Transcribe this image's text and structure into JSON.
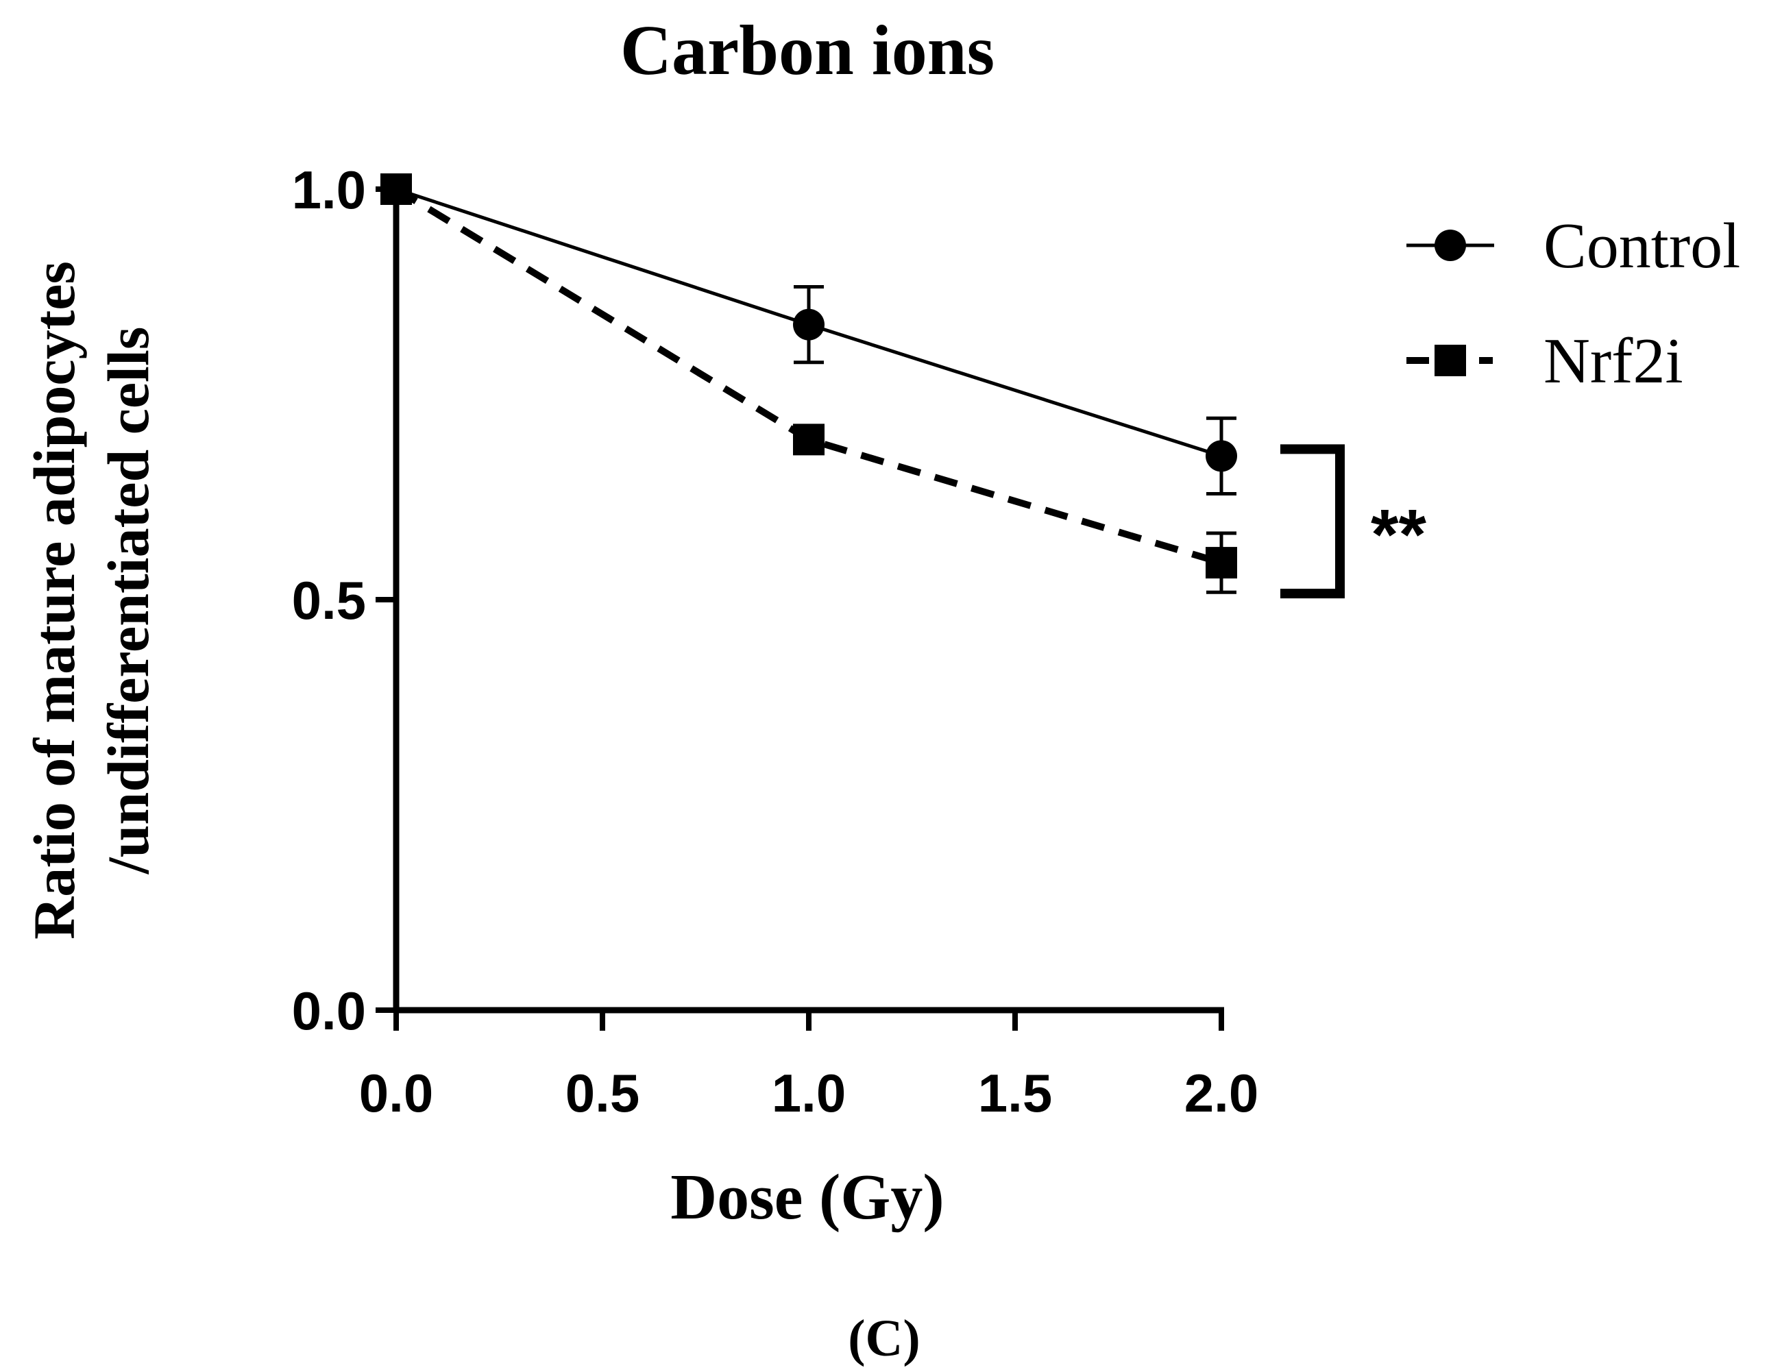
{
  "panel_label": "(C)",
  "chart_data": {
    "type": "line",
    "title": "Carbon ions",
    "xlabel": "Dose (Gy)",
    "ylabel_lines": [
      "Ratio of mature adipocytes",
      "/undifferentiated cells"
    ],
    "xlim": [
      0,
      2
    ],
    "ylim": [
      0,
      1
    ],
    "xticks": [
      0,
      0.5,
      1,
      1.5,
      2
    ],
    "xtick_labels": [
      "0.0",
      "0.5",
      "1.0",
      "1.5",
      "2.0"
    ],
    "yticks": [
      0,
      0.5,
      1
    ],
    "ytick_labels": [
      "0.0",
      "0.5",
      "1.0"
    ],
    "grid": false,
    "legend_position": "top-right",
    "x": [
      0,
      1,
      2
    ],
    "series": [
      {
        "name": "Control",
        "values": [
          1.0,
          0.835,
          0.675
        ],
        "errors": [
          0,
          0.046,
          0.046
        ],
        "marker": "circle",
        "line_style": "solid",
        "color": "#000000"
      },
      {
        "name": "Nrf2i",
        "values": [
          1.0,
          0.695,
          0.545
        ],
        "errors": [
          0,
          0,
          0.036
        ],
        "marker": "square",
        "line_style": "dashed",
        "color": "#000000"
      }
    ],
    "annotations": [
      {
        "text": "**",
        "between_series": [
          "Control",
          "Nrf2i"
        ],
        "at_x": 2
      }
    ]
  }
}
